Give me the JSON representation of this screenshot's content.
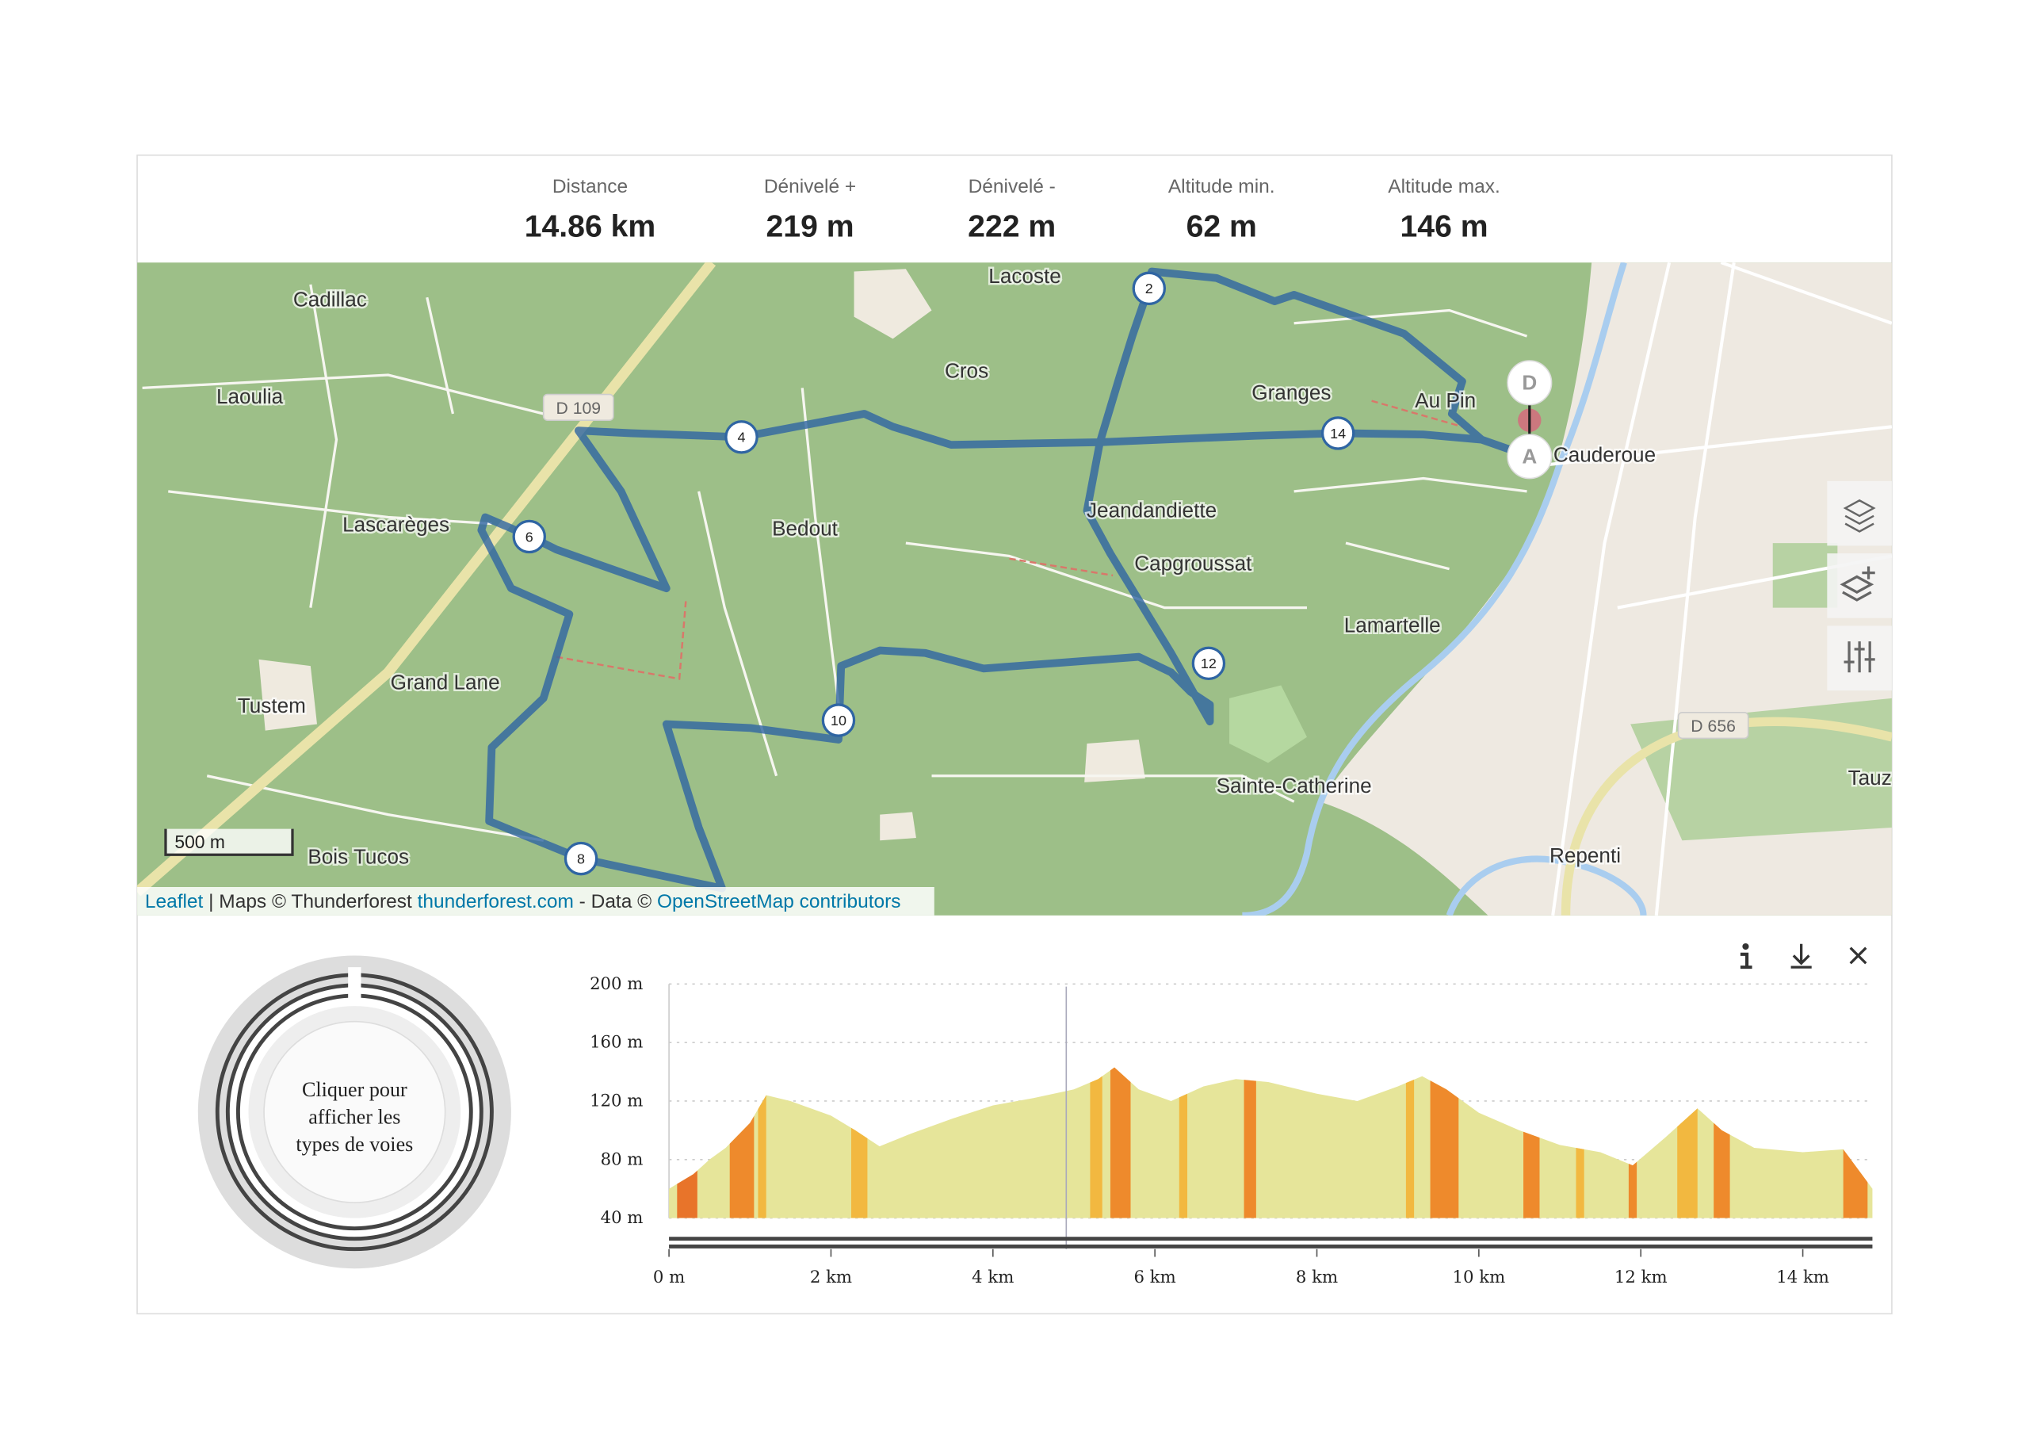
{
  "stats": [
    {
      "label": "Distance",
      "value": "14.86 km"
    },
    {
      "label": "Dénivelé +",
      "value": "219 m"
    },
    {
      "label": "Dénivelé -",
      "value": "222 m"
    },
    {
      "label": "Altitude min.",
      "value": "62 m"
    },
    {
      "label": "Altitude max.",
      "value": "146 m"
    }
  ],
  "map": {
    "places": [
      "Cadillac",
      "Laoulia",
      "Lascarèges",
      "Grand Lane",
      "Tustem",
      "Bois Tucos",
      "Lacoste",
      "Cros",
      "Granges",
      "Au Pin",
      "Cauderoue",
      "Bedout",
      "Jeandandiette",
      "Capgroussat",
      "Lamartelle",
      "Sainte-Catherine",
      "Repenti",
      "Tauz"
    ],
    "road_labels": [
      "D 109",
      "D 656"
    ],
    "km_markers": [
      "2",
      "4",
      "6",
      "8",
      "10",
      "12",
      "14"
    ],
    "start_marker": "A",
    "end_marker": "D",
    "scale": "500 m",
    "attribution": [
      "Leaflet",
      " | Maps © Thunderforest ",
      "thunderforest.com",
      " - Data © ",
      "OpenStreetMap contributors"
    ]
  },
  "donut": {
    "lines": [
      "Cliquer pour",
      "afficher les",
      "types de voies"
    ]
  },
  "chart_data": {
    "type": "area",
    "x": [
      0,
      0.3,
      0.5,
      0.7,
      1.0,
      1.2,
      1.5,
      2.0,
      2.3,
      2.6,
      3.0,
      3.5,
      4.0,
      4.5,
      5.0,
      5.3,
      5.5,
      5.8,
      6.2,
      6.6,
      7.0,
      7.4,
      8.0,
      8.5,
      9.0,
      9.3,
      9.6,
      10.0,
      10.5,
      11.0,
      11.5,
      11.9,
      12.3,
      12.7,
      13.0,
      13.4,
      14.0,
      14.5,
      14.86
    ],
    "values": [
      60,
      70,
      80,
      88,
      105,
      124,
      120,
      110,
      100,
      89,
      98,
      108,
      117,
      122,
      128,
      135,
      143,
      128,
      120,
      130,
      135,
      133,
      125,
      120,
      130,
      137,
      128,
      112,
      100,
      90,
      85,
      76,
      95,
      115,
      100,
      88,
      85,
      87,
      60
    ],
    "color": "#e6e59a",
    "segments": [
      {
        "start": 0.1,
        "end": 0.35,
        "color": "#e8742a"
      },
      {
        "start": 0.75,
        "end": 1.05,
        "color": "#ee8a2c"
      },
      {
        "start": 1.1,
        "end": 1.2,
        "color": "#f2b840"
      },
      {
        "start": 2.25,
        "end": 2.45,
        "color": "#f2b840"
      },
      {
        "start": 5.2,
        "end": 5.35,
        "color": "#f2b840"
      },
      {
        "start": 5.45,
        "end": 5.7,
        "color": "#ee8a2c"
      },
      {
        "start": 6.3,
        "end": 6.4,
        "color": "#f2b840"
      },
      {
        "start": 7.1,
        "end": 7.25,
        "color": "#ee8a2c"
      },
      {
        "start": 9.1,
        "end": 9.2,
        "color": "#f2b840"
      },
      {
        "start": 9.4,
        "end": 9.75,
        "color": "#ee8a2c"
      },
      {
        "start": 10.55,
        "end": 10.75,
        "color": "#ee8a2c"
      },
      {
        "start": 11.2,
        "end": 11.3,
        "color": "#f2b840"
      },
      {
        "start": 11.85,
        "end": 11.95,
        "color": "#ee8a2c"
      },
      {
        "start": 12.45,
        "end": 12.7,
        "color": "#f2b840"
      },
      {
        "start": 12.9,
        "end": 13.1,
        "color": "#ee8a2c"
      },
      {
        "start": 14.5,
        "end": 14.8,
        "color": "#ee8a2c"
      }
    ],
    "xlim": [
      0,
      14.86
    ],
    "ylim": [
      40,
      200
    ],
    "xticks": [
      {
        "value": 0,
        "label": "0 m"
      },
      {
        "value": 2,
        "label": "2 km"
      },
      {
        "value": 4,
        "label": "4 km"
      },
      {
        "value": 6,
        "label": "6 km"
      },
      {
        "value": 8,
        "label": "8 km"
      },
      {
        "value": 10,
        "label": "10 km"
      },
      {
        "value": 12,
        "label": "12 km"
      },
      {
        "value": 14,
        "label": "14 km"
      }
    ],
    "yticks": [
      {
        "value": 40,
        "label": "40 m"
      },
      {
        "value": 80,
        "label": "80 m"
      },
      {
        "value": 120,
        "label": "120 m"
      },
      {
        "value": 160,
        "label": "160 m"
      },
      {
        "value": 200,
        "label": "200 m"
      }
    ],
    "grid": true
  }
}
